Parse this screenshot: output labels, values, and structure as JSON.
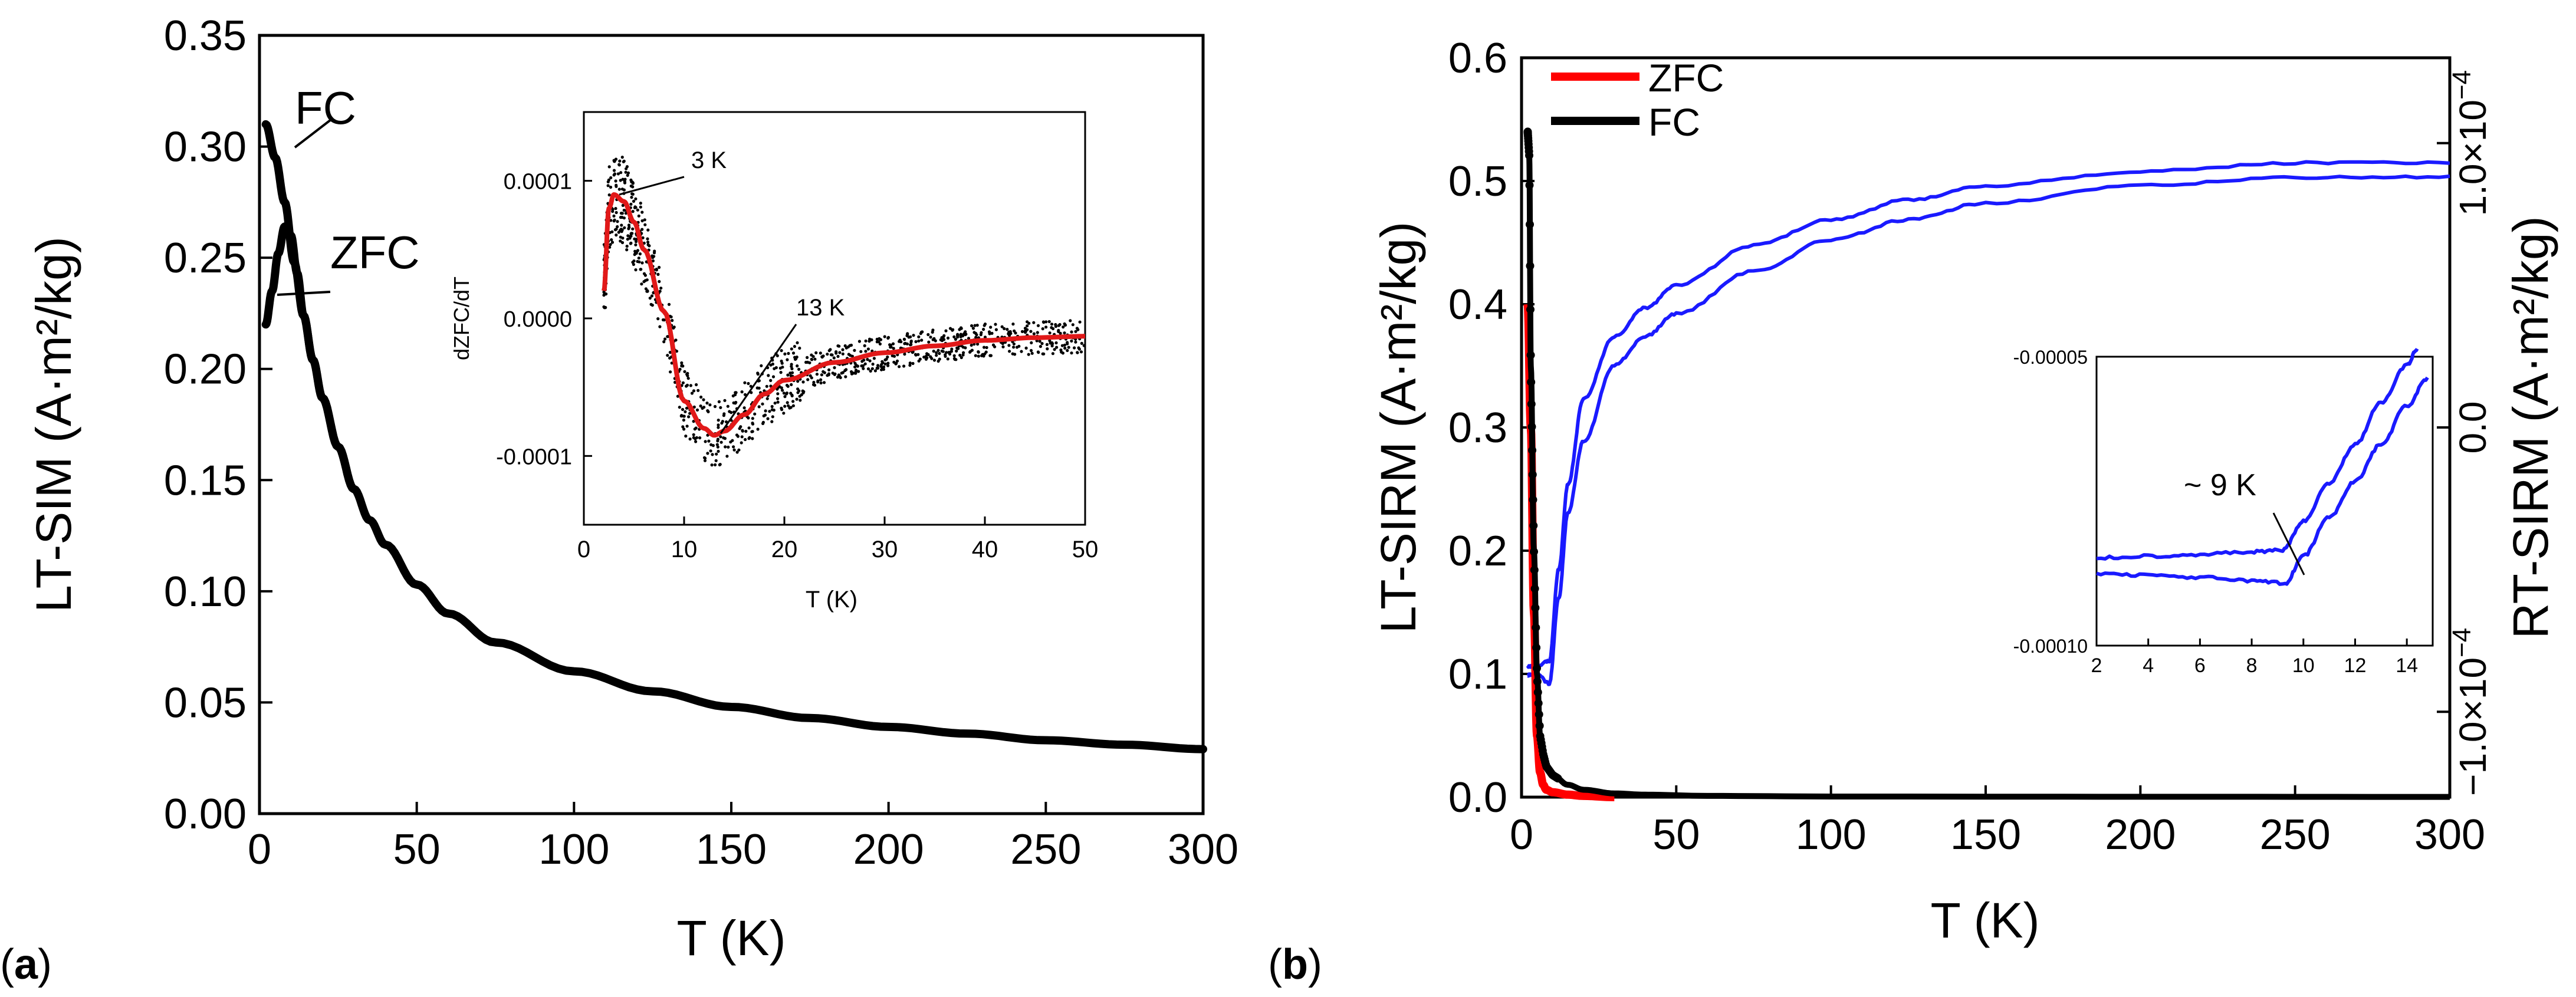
{
  "panel_labels": {
    "a": "(a)",
    "b": "(b)",
    "a_letter": "a",
    "b_letter": "b"
  },
  "colors": {
    "zfc_red": "#ff0000",
    "fc_black": "#000000",
    "rt_blue": "#1a1aff",
    "inset_fit_red": "#e11919"
  },
  "chart_data": [
    {
      "id": "panel_a_main",
      "type": "line",
      "xlabel": "T (K)",
      "ylabel": "LT-SIM (A·m²/kg)",
      "xlim": [
        0,
        300
      ],
      "ylim": [
        0,
        0.35
      ],
      "xticks": [
        0,
        50,
        100,
        150,
        200,
        250,
        300
      ],
      "yticks": [
        0.0,
        0.05,
        0.1,
        0.15,
        0.2,
        0.25,
        0.3,
        0.35
      ],
      "xtick_labels": [
        "0",
        "50",
        "100",
        "150",
        "200",
        "250",
        "300"
      ],
      "ytick_labels": [
        "0.00",
        "0.05",
        "0.10",
        "0.15",
        "0.20",
        "0.25",
        "0.30",
        "0.35"
      ],
      "series": [
        {
          "name": "FC",
          "color": "#000000",
          "x": [
            2,
            5,
            8,
            11,
            14,
            17,
            20,
            25,
            30,
            35,
            40,
            50,
            60,
            75,
            100,
            125,
            150,
            175,
            200,
            225,
            250,
            275,
            300
          ],
          "y": [
            0.31,
            0.295,
            0.275,
            0.248,
            0.224,
            0.204,
            0.187,
            0.165,
            0.146,
            0.132,
            0.121,
            0.103,
            0.09,
            0.077,
            0.064,
            0.055,
            0.048,
            0.043,
            0.039,
            0.036,
            0.033,
            0.031,
            0.029
          ]
        },
        {
          "name": "ZFC",
          "color": "#000000",
          "x": [
            2,
            4,
            6,
            8,
            10,
            12,
            14,
            17,
            20,
            25,
            30
          ],
          "y": [
            0.22,
            0.235,
            0.252,
            0.264,
            0.26,
            0.243,
            0.224,
            0.204,
            0.187,
            0.165,
            0.146
          ]
        }
      ],
      "annotations": [
        "FC",
        "ZFC"
      ]
    },
    {
      "id": "panel_a_inset",
      "type": "scatter",
      "xlabel": "T (K)",
      "ylabel": "dZFC/dT",
      "xlim": [
        0,
        50
      ],
      "ylim": [
        -0.00015,
        0.00015
      ],
      "xticks": [
        0,
        10,
        20,
        30,
        40,
        50
      ],
      "yticks": [
        0.0001,
        0.0,
        -0.0001
      ],
      "xtick_labels": [
        "0",
        "10",
        "20",
        "30",
        "40",
        "50"
      ],
      "ytick_labels": [
        "0.0001",
        "0.0000",
        "-0.0001"
      ],
      "fit": {
        "name": "smoothed",
        "color": "#e11919",
        "x": [
          2,
          2.5,
          3,
          4,
          5,
          6,
          8,
          10,
          12,
          13,
          14,
          16,
          18,
          20,
          25,
          30,
          35,
          40,
          45,
          50
        ],
        "y": [
          2e-05,
          8e-05,
          9e-05,
          8.5e-05,
          7e-05,
          5e-05,
          5e-06,
          -6e-05,
          -8e-05,
          -8.5e-05,
          -8.2e-05,
          -7e-05,
          -5.5e-05,
          -4.5e-05,
          -3.2e-05,
          -2.5e-05,
          -2e-05,
          -1.6e-05,
          -1.4e-05,
          -1.3e-05
        ]
      },
      "annotations": [
        {
          "text": "3 K",
          "x": 3,
          "y": 9e-05
        },
        {
          "text": "13 K",
          "x": 13,
          "y": -8.5e-05
        }
      ]
    },
    {
      "id": "panel_b_main",
      "type": "line",
      "xlabel": "T (K)",
      "ylabel": "LT-SIRM (A·m²/kg)",
      "ylabel_right": "RT-SIRM (A·m²/kg)",
      "xlim": [
        0,
        300
      ],
      "ylim": [
        0,
        0.6
      ],
      "ylim_right": [
        -0.00013,
        0.00013
      ],
      "xticks": [
        0,
        50,
        100,
        150,
        200,
        250,
        300
      ],
      "yticks": [
        0.0,
        0.1,
        0.2,
        0.3,
        0.4,
        0.5,
        0.6
      ],
      "xtick_labels": [
        "0",
        "50",
        "100",
        "150",
        "200",
        "250",
        "300"
      ],
      "ytick_labels": [
        "0.0",
        "0.1",
        "0.2",
        "0.3",
        "0.4",
        "0.5",
        "0.6"
      ],
      "right_ytick_labels": [
        "−1.0×10",
        "0.0",
        "1.0×10"
      ],
      "right_ytick_exponent": "−4",
      "right_ytick_values": [
        -0.0001,
        0.0,
        0.0001
      ],
      "legend": [
        {
          "name": "ZFC",
          "color": "#ff0000"
        },
        {
          "name": "FC",
          "color": "#000000"
        }
      ],
      "series": [
        {
          "name": "ZFC",
          "axis": "left",
          "color": "#ff0000",
          "x": [
            2,
            3,
            4,
            5,
            6,
            7,
            8,
            10,
            15,
            20,
            30
          ],
          "y": [
            0.4,
            0.3,
            0.15,
            0.05,
            0.02,
            0.01,
            0.006,
            0.004,
            0.002,
            0.001,
            0.0
          ]
        },
        {
          "name": "FC",
          "axis": "left",
          "color": "#000000",
          "x": [
            2,
            2.5,
            3,
            4,
            5,
            6,
            7,
            8,
            10,
            15,
            20,
            30,
            40,
            60,
            100,
            200,
            300
          ],
          "y": [
            0.54,
            0.52,
            0.35,
            0.2,
            0.1,
            0.05,
            0.035,
            0.025,
            0.018,
            0.01,
            0.006,
            0.003,
            0.002,
            0.001,
            0.0005,
            0.0003,
            0.0002
          ]
        },
        {
          "name": "RT-SIRM warming",
          "axis": "right",
          "color": "#1a1aff",
          "x": [
            2,
            5,
            9,
            12,
            15,
            20,
            30,
            40,
            50,
            75,
            100,
            125,
            150,
            200,
            250,
            300
          ],
          "y": [
            -8.7e-05,
            -8.7e-05,
            -9e-05,
            -6e-05,
            -3e-05,
            -5e-06,
            2.2e-05,
            3.2e-05,
            4e-05,
            5.5e-05,
            6.6e-05,
            7.3e-05,
            7.9e-05,
            8.5e-05,
            8.8e-05,
            8.8e-05
          ]
        },
        {
          "name": "RT-SIRM cooling",
          "axis": "right",
          "color": "#1a1aff",
          "x": [
            300,
            250,
            200,
            150,
            125,
            100,
            75,
            50,
            40,
            30,
            20,
            15,
            12,
            9,
            5,
            2
          ],
          "y": [
            9.3e-05,
            9.3e-05,
            9e-05,
            8.5e-05,
            8e-05,
            7.3e-05,
            6.4e-05,
            5e-05,
            4.2e-05,
            3.2e-05,
            1e-05,
            -2e-05,
            -5e-05,
            -8.2e-05,
            -8.4e-05,
            -8.4e-05
          ]
        }
      ]
    },
    {
      "id": "panel_b_inset",
      "type": "line",
      "xlim": [
        2,
        15
      ],
      "ylim": [
        -0.0001,
        -5e-05
      ],
      "xticks": [
        2,
        4,
        6,
        8,
        10,
        12,
        14
      ],
      "yticks": [
        -5e-05,
        -0.0001
      ],
      "xtick_labels": [
        "2",
        "4",
        "6",
        "8",
        "10",
        "12",
        "14"
      ],
      "ytick_labels": [
        "-0.00005",
        "-0.00010"
      ],
      "series": [
        {
          "name": "upper",
          "color": "#1a1aff",
          "x": [
            2,
            4,
            6,
            8,
            9.2,
            10,
            11,
            12,
            13,
            14,
            14.4
          ],
          "y": [
            -8.48e-05,
            -8.45e-05,
            -8.42e-05,
            -8.38e-05,
            -8.35e-05,
            -7.85e-05,
            -7.18e-05,
            -6.52e-05,
            -5.8e-05,
            -5.15e-05,
            -4.88e-05
          ]
        },
        {
          "name": "lower",
          "color": "#1a1aff",
          "x": [
            2,
            4,
            6,
            8,
            9.3,
            10,
            11,
            12,
            13,
            14,
            14.8
          ],
          "y": [
            -8.75e-05,
            -8.78e-05,
            -8.82e-05,
            -8.88e-05,
            -8.92e-05,
            -8.45e-05,
            -7.78e-05,
            -7.15e-05,
            -6.52e-05,
            -5.85e-05,
            -5.38e-05
          ]
        }
      ],
      "annotation": {
        "text": "~ 9 K",
        "x": 9.3,
        "y": -8.88e-05
      }
    }
  ]
}
